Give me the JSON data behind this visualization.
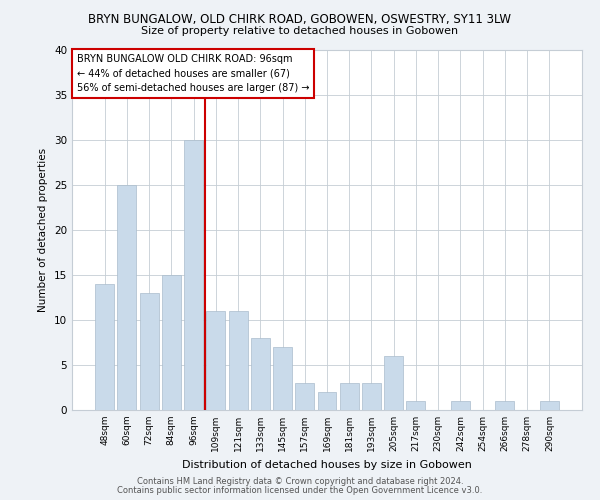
{
  "title1": "BRYN BUNGALOW, OLD CHIRK ROAD, GOBOWEN, OSWESTRY, SY11 3LW",
  "title2": "Size of property relative to detached houses in Gobowen",
  "xlabel": "Distribution of detached houses by size in Gobowen",
  "ylabel": "Number of detached properties",
  "categories": [
    "48sqm",
    "60sqm",
    "72sqm",
    "84sqm",
    "96sqm",
    "109sqm",
    "121sqm",
    "133sqm",
    "145sqm",
    "157sqm",
    "169sqm",
    "181sqm",
    "193sqm",
    "205sqm",
    "217sqm",
    "230sqm",
    "242sqm",
    "254sqm",
    "266sqm",
    "278sqm",
    "290sqm"
  ],
  "values": [
    14,
    25,
    13,
    15,
    30,
    11,
    11,
    8,
    7,
    3,
    2,
    3,
    3,
    6,
    1,
    0,
    1,
    0,
    1,
    0,
    1
  ],
  "bar_color": "#c9daea",
  "bar_edge_color": "#aabccc",
  "highlight_index": 4,
  "highlight_line_color": "#cc0000",
  "ylim": [
    0,
    40
  ],
  "yticks": [
    0,
    5,
    10,
    15,
    20,
    25,
    30,
    35,
    40
  ],
  "annotation_title": "BRYN BUNGALOW OLD CHIRK ROAD: 96sqm",
  "annotation_line1": "← 44% of detached houses are smaller (67)",
  "annotation_line2": "56% of semi-detached houses are larger (87) →",
  "annotation_box_color": "#ffffff",
  "annotation_box_edge": "#cc0000",
  "footer1": "Contains HM Land Registry data © Crown copyright and database right 2024.",
  "footer2": "Contains public sector information licensed under the Open Government Licence v3.0.",
  "bg_color": "#eef2f6",
  "plot_bg_color": "#ffffff",
  "grid_color": "#c5cdd5"
}
